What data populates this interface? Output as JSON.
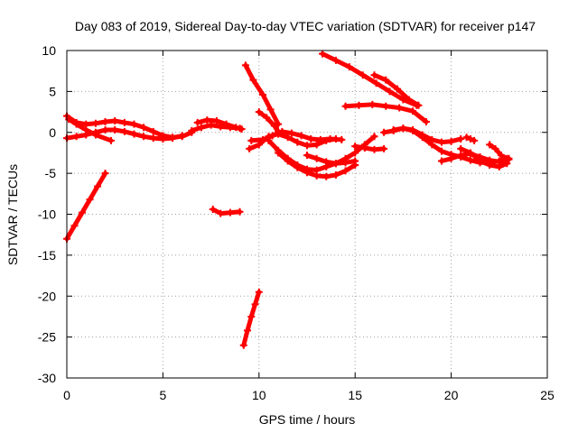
{
  "chart_data": {
    "type": "scatter",
    "title": "Day 083 of 2019, Sidereal Day-to-day VTEC variation (SDTVAR) for receiver p147",
    "xlabel": "GPS time / hours",
    "ylabel": "SDTVAR / TECUs",
    "xlim": [
      0,
      25
    ],
    "ylim": [
      -30,
      10
    ],
    "xticks": [
      0,
      5,
      10,
      15,
      20,
      25
    ],
    "yticks": [
      -30,
      -25,
      -20,
      -15,
      -10,
      -5,
      0,
      5,
      10
    ],
    "grid": true,
    "marker_color": "#ff0000",
    "series": [
      {
        "x": [
          0.0,
          0.4,
          0.8,
          1.2,
          1.6,
          2.0
        ],
        "y": [
          -13.0,
          -11.4,
          -9.8,
          -8.2,
          -6.6,
          -5.0
        ]
      },
      {
        "x": [
          0.0,
          0.5,
          1.0,
          1.5,
          2.0,
          2.5,
          3.0,
          3.5,
          4.0,
          4.5,
          5.0,
          5.5,
          6.0,
          6.5
        ],
        "y": [
          2.0,
          1.2,
          1.0,
          1.1,
          1.3,
          1.4,
          1.2,
          1.0,
          0.6,
          0.1,
          -0.4,
          -0.6,
          -0.5,
          0.0
        ]
      },
      {
        "x": [
          0.0,
          0.5,
          1.0,
          1.5,
          2.0,
          2.5,
          3.0,
          3.5,
          4.0,
          4.5,
          5.0,
          5.5,
          6.0
        ],
        "y": [
          -0.7,
          -0.5,
          -0.3,
          0.0,
          0.3,
          0.3,
          0.1,
          -0.2,
          -0.5,
          -0.7,
          -0.8,
          -0.7,
          -0.4
        ]
      },
      {
        "x": [
          0.1,
          0.5,
          1.0,
          1.5,
          2.3
        ],
        "y": [
          1.6,
          1.0,
          0.3,
          -0.3,
          -1.0
        ]
      },
      {
        "x": [
          6.5,
          7.0,
          7.5,
          8.0,
          8.5,
          9.0
        ],
        "y": [
          0.2,
          0.6,
          0.9,
          0.7,
          0.6,
          0.5
        ]
      },
      {
        "x": [
          6.8,
          7.3,
          7.8,
          8.3,
          8.8,
          9.1
        ],
        "y": [
          1.2,
          1.5,
          1.4,
          1.0,
          0.6,
          0.4
        ]
      },
      {
        "x": [
          7.6,
          8.0,
          8.5,
          9.0
        ],
        "y": [
          -9.4,
          -9.9,
          -9.8,
          -9.7
        ]
      },
      {
        "x": [
          9.2,
          9.4,
          9.6,
          9.8,
          10.0
        ],
        "y": [
          -26.0,
          -24.2,
          -22.5,
          -21.0,
          -19.5
        ]
      },
      {
        "x": [
          9.3,
          9.7,
          10.2,
          10.6,
          11.0
        ],
        "y": [
          8.2,
          6.4,
          4.6,
          2.8,
          1.0
        ]
      },
      {
        "x": [
          10.0,
          10.4,
          10.8,
          11.0
        ],
        "y": [
          2.5,
          1.8,
          0.8,
          0.1
        ]
      },
      {
        "x": [
          9.5,
          10.0,
          10.5,
          11.0,
          11.5,
          12.0,
          12.5,
          13.0,
          13.5,
          14.0
        ],
        "y": [
          -2.0,
          -1.5,
          -0.5,
          -0.2,
          -0.6,
          -1.2,
          -1.6,
          -1.5,
          -1.0,
          -0.8
        ]
      },
      {
        "x": [
          9.6,
          10.2,
          10.7,
          11.2,
          11.7,
          12.2,
          12.7,
          13.2,
          13.7,
          14.3
        ],
        "y": [
          -1.0,
          -0.9,
          -0.4,
          0.1,
          -0.1,
          -0.4,
          -0.8,
          -0.9,
          -0.8,
          -0.9
        ]
      },
      {
        "x": [
          10.5,
          11.0,
          11.5,
          12.0,
          12.5,
          13.0,
          13.5,
          14.0,
          14.5,
          15.0,
          15.5,
          16.0
        ],
        "y": [
          -1.0,
          -2.2,
          -3.2,
          -4.0,
          -4.5,
          -4.6,
          -4.2,
          -3.8,
          -3.2,
          -2.5,
          -1.5,
          -0.5
        ]
      },
      {
        "x": [
          11.0,
          11.5,
          12.0,
          12.5,
          13.0,
          13.5,
          14.0,
          14.5,
          15.0
        ],
        "y": [
          -2.5,
          -3.5,
          -4.3,
          -4.9,
          -5.3,
          -5.4,
          -5.2,
          -4.7,
          -4.0
        ]
      },
      {
        "x": [
          12.5,
          13.0,
          13.5,
          14.0,
          14.5,
          15.0
        ],
        "y": [
          -2.8,
          -3.2,
          -3.6,
          -3.8,
          -3.7,
          -3.5
        ]
      },
      {
        "x": [
          13.3,
          14.0,
          14.7,
          15.4,
          16.1,
          16.8,
          17.5,
          18.2
        ],
        "y": [
          9.6,
          8.8,
          8.0,
          7.0,
          6.0,
          5.0,
          4.0,
          3.3
        ]
      },
      {
        "x": [
          16.0,
          16.6,
          17.2,
          17.8,
          18.3
        ],
        "y": [
          7.0,
          6.4,
          5.3,
          4.0,
          3.3
        ]
      },
      {
        "x": [
          14.5,
          15.2,
          15.9,
          16.6,
          17.3,
          18.0,
          18.7
        ],
        "y": [
          3.2,
          3.3,
          3.4,
          3.2,
          3.0,
          2.6,
          1.3
        ]
      },
      {
        "x": [
          15.0,
          15.5,
          16.0,
          16.5
        ],
        "y": [
          -1.7,
          -1.9,
          -2.1,
          -2.0
        ]
      },
      {
        "x": [
          16.5,
          17.0,
          17.5,
          18.0,
          18.5,
          19.0,
          19.5,
          20.0,
          20.5
        ],
        "y": [
          0.0,
          0.2,
          0.5,
          0.3,
          -0.3,
          -0.9,
          -1.2,
          -1.1,
          -0.8
        ]
      },
      {
        "x": [
          17.0,
          17.5,
          18.0,
          18.5,
          19.0,
          19.5,
          20.0,
          20.5,
          21.0,
          21.5,
          22.0,
          22.5,
          23.0
        ],
        "y": [
          0.3,
          0.5,
          0.2,
          -0.6,
          -1.5,
          -2.3,
          -2.7,
          -3.0,
          -3.4,
          -3.7,
          -3.7,
          -3.5,
          -3.2
        ]
      },
      {
        "x": [
          19.5,
          20.0,
          20.5,
          21.0,
          21.5,
          22.0,
          22.5,
          23.0
        ],
        "y": [
          -3.5,
          -3.2,
          -2.8,
          -2.6,
          -3.0,
          -3.4,
          -3.6,
          -3.3
        ]
      },
      {
        "x": [
          20.5,
          21.0,
          21.5,
          22.0,
          22.5,
          22.9
        ],
        "y": [
          -2.0,
          -2.5,
          -3.5,
          -4.0,
          -4.2,
          -3.8
        ]
      },
      {
        "x": [
          20.8,
          21.0,
          21.2
        ],
        "y": [
          -0.6,
          -0.8,
          -1.0
        ]
      },
      {
        "x": [
          22.0,
          22.3,
          22.6,
          22.9
        ],
        "y": [
          -1.5,
          -2.0,
          -2.8,
          -3.2
        ]
      }
    ]
  }
}
